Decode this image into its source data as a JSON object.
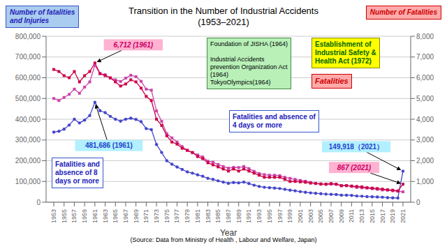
{
  "chart_data": {
    "type": "line",
    "title": "Transition in the Number of Industrial Accidents",
    "subtitle": "(1953–2021)",
    "x_label": "Year",
    "y_label": "Number of fatalities\nand Injuries",
    "y2_label": "Number of Fatalities",
    "x": [
      1953,
      1954,
      1955,
      1956,
      1957,
      1958,
      1959,
      1960,
      1961,
      1962,
      1963,
      1964,
      1965,
      1966,
      1967,
      1968,
      1969,
      1970,
      1971,
      1972,
      1973,
      1974,
      1975,
      1976,
      1977,
      1978,
      1979,
      1980,
      1981,
      1982,
      1983,
      1984,
      1985,
      1986,
      1987,
      1988,
      1989,
      1990,
      1991,
      1992,
      1993,
      1994,
      1995,
      1996,
      1997,
      1998,
      1999,
      2000,
      2001,
      2002,
      2003,
      2004,
      2005,
      2006,
      2007,
      2008,
      2009,
      2010,
      2011,
      2012,
      2013,
      2014,
      2015,
      2016,
      2017,
      2018,
      2019,
      2020,
      2021
    ],
    "series": [
      {
        "name": "Fatalities and absence of\n4 days or more",
        "color": "#cc44aa",
        "marker": "square",
        "line_style": "solid",
        "values": [
          500000,
          490000,
          505000,
          520000,
          545000,
          525000,
          555000,
          580000,
          660000,
          620000,
          615000,
          598000,
          590000,
          582000,
          598000,
          612000,
          605000,
          583000,
          545000,
          540000,
          440000,
          390000,
          330000,
          310000,
          290000,
          268000,
          250000,
          238000,
          228000,
          218000,
          198000,
          193000,
          182000,
          172000,
          164000,
          168000,
          167000,
          172000,
          162000,
          149000,
          138000,
          133000,
          130000,
          130000,
          128000,
          120000,
          115000,
          110000,
          105000,
          101000,
          95000,
          91000,
          89000,
          86000,
          87000,
          86000,
          79000,
          80000,
          76000,
          71000,
          69000,
          68000,
          65000,
          62000,
          59000,
          58000,
          55000,
          53000,
          50000
        ]
      },
      {
        "name": "Fatalities and\nabsence of 8\ndays or more",
        "color": "#4444cc",
        "marker": "circle",
        "line_style": "solid",
        "values": [
          338000,
          342000,
          352000,
          372000,
          400000,
          382000,
          396000,
          418000,
          481686,
          441000,
          432000,
          414000,
          400000,
          391000,
          400000,
          405000,
          399000,
          388000,
          355000,
          350000,
          278000,
          240000,
          200000,
          183000,
          170000,
          158000,
          146000,
          140000,
          132000,
          125000,
          115000,
          110000,
          103000,
          97000,
          91000,
          95000,
          93000,
          97000,
          90000,
          82000,
          76000,
          72000,
          70000,
          68000,
          66000,
          62000,
          58000,
          55000,
          51000,
          48000,
          45000,
          43000,
          41000,
          39000,
          38000,
          37000,
          34000,
          34000,
          33000,
          30000,
          29000,
          27000,
          26000,
          25000,
          24000,
          22000,
          21000,
          20000,
          149918
        ]
      },
      {
        "name": "Fatalities",
        "color": "#cc0044",
        "marker": "square",
        "line_style": "solid",
        "axis": "y2",
        "values": [
          6400,
          6300,
          6100,
          6000,
          6300,
          5800,
          6100,
          6300,
          6712,
          6200,
          6100,
          6000,
          5800,
          5600,
          5700,
          5900,
          5800,
          5500,
          5100,
          4900,
          4000,
          3700,
          3200,
          2900,
          2800,
          2600,
          2500,
          2400,
          2200,
          2100,
          1900,
          1800,
          1700,
          1600,
          1500,
          1600,
          1500,
          1600,
          1500,
          1400,
          1300,
          1200,
          1200,
          1200,
          1200,
          1100,
          1000,
          1000,
          980,
          960,
          920,
          900,
          870,
          870,
          900,
          870,
          800,
          800,
          780,
          760,
          740,
          700,
          680,
          660,
          630,
          600,
          580,
          545,
          867
        ]
      }
    ],
    "xlim": [
      1951.5,
      2022.5
    ],
    "xticks": [
      1953,
      1955,
      1957,
      1959,
      1961,
      1963,
      1965,
      1967,
      1969,
      1971,
      1973,
      1975,
      1977,
      1979,
      1981,
      1983,
      1985,
      1987,
      1989,
      1991,
      1993,
      1995,
      1997,
      1999,
      2001,
      2003,
      2005,
      2007,
      2009,
      2011,
      2013,
      2015,
      2017,
      2019,
      2021
    ],
    "ylim": [
      0,
      800000
    ],
    "yticks": [
      0,
      {
        "value": 100000,
        "label": "100,000"
      },
      {
        "value": 200000,
        "label": "200,000"
      },
      {
        "value": 300000,
        "label": "300,000"
      },
      {
        "value": 400000,
        "label": "400,000"
      },
      {
        "value": 500000,
        "label": "500,000"
      },
      {
        "value": 600000,
        "label": "600,000"
      },
      {
        "value": 700000,
        "label": "700,000"
      },
      {
        "value": 800000,
        "label": "800,000"
      }
    ],
    "y2lim": [
      0,
      8000
    ],
    "y2ticks": [
      0,
      {
        "value": 1000,
        "label": "1,000"
      },
      {
        "value": 2000,
        "label": "2,000"
      },
      {
        "value": 3000,
        "label": "3,000"
      },
      {
        "value": 4000,
        "label": "4,000"
      },
      {
        "value": 5000,
        "label": "5,000"
      },
      {
        "value": 6000,
        "label": "6,000"
      },
      {
        "value": 7000,
        "label": "7,000"
      },
      {
        "value": 8000,
        "label": "8,000"
      }
    ],
    "grid": true,
    "annotations": [
      {
        "text": "Foundation of JISHA (1964)\n\nIndustrial Accidents\nprevention Organization Act\n(1964)\nTokyoOlympics(1964)"
      },
      {
        "text": "Establishment of\nIndustrial Safety &\nHealth Act (1972)"
      },
      {
        "text": "6,712 (1961)",
        "x": 1961,
        "y": 6712,
        "axis": "y2"
      },
      {
        "text": "481,686 (1961)",
        "x": 1961,
        "y": 481686
      },
      {
        "text": "149,918（2021）",
        "x": 2021,
        "y": 149918
      },
      {
        "text": "867 (2021)",
        "x": 2021,
        "y": 867,
        "axis": "y2"
      },
      {
        "text": "(Source: Data from Ministry of Health , Labour and Welfare, Japan)"
      }
    ]
  }
}
